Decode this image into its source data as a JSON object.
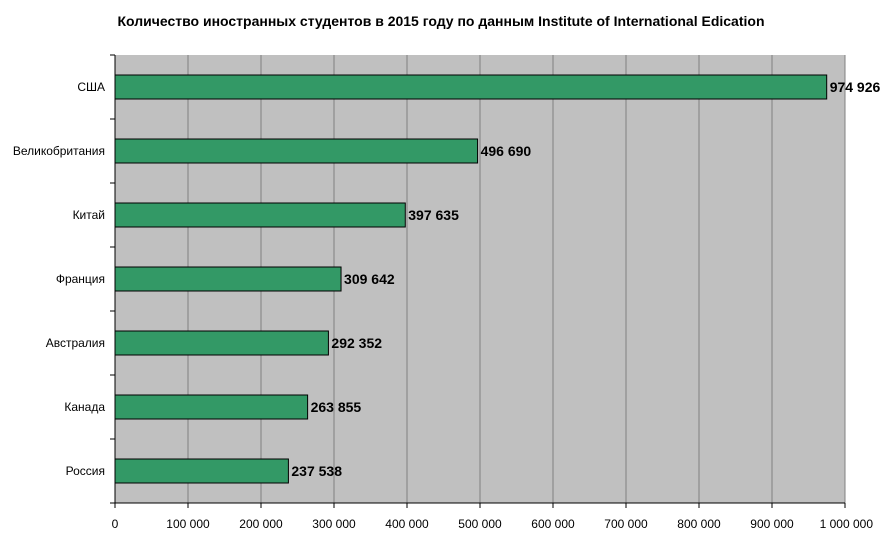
{
  "chart_data": {
    "type": "bar",
    "orientation": "horizontal",
    "title": "Количество иностранных студентов в 2015 году по данным Institute of International Edication",
    "categories": [
      "США",
      "Великобритания",
      "Китай",
      "Франция",
      "Австралия",
      "Канада",
      "Россия"
    ],
    "values": [
      974926,
      496690,
      397635,
      309642,
      292352,
      263855,
      237538
    ],
    "value_labels": [
      "974 926",
      "496 690",
      "397 635",
      "309 642",
      "292 352",
      "263 855",
      "237 538"
    ],
    "xlim": [
      0,
      1000000
    ],
    "x_ticks": [
      0,
      100000,
      200000,
      300000,
      400000,
      500000,
      600000,
      700000,
      800000,
      900000,
      1000000
    ],
    "x_tick_labels": [
      "0",
      "100 000",
      "200 000",
      "300 000",
      "400 000",
      "500 000",
      "600 000",
      "700 000",
      "800 000",
      "900 000",
      "1 000 000"
    ],
    "xlabel": "",
    "ylabel": "",
    "grid": "vertical",
    "legend": "none",
    "colors": {
      "bar": "#339966",
      "plot_background": "#c0c0c0",
      "grid": "#808080"
    }
  }
}
